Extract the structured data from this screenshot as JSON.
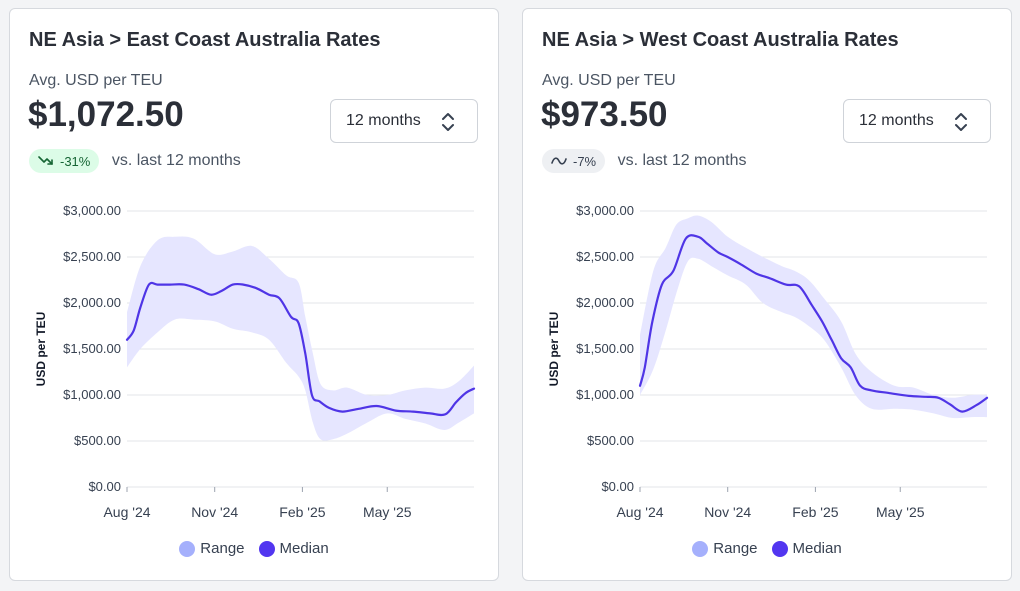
{
  "cards": [
    {
      "title": "NE Asia > East Coast Australia Rates",
      "metric_label": "Avg. USD per TEU",
      "metric_value": "$1,072.50",
      "change": {
        "text": "-31%",
        "trend": "down",
        "icon": "trend-down-icon"
      },
      "comparison": "vs. last 12 months",
      "range_select": {
        "value": "12 months",
        "icon": "chevron-up-down-icon"
      }
    },
    {
      "title": "NE Asia > West Coast Australia Rates",
      "metric_label": "Avg. USD per TEU",
      "metric_value": "$973.50",
      "change": {
        "text": "-7%",
        "trend": "flat",
        "icon": "trend-flat-icon"
      },
      "comparison": "vs. last 12 months",
      "range_select": {
        "value": "12 months",
        "icon": "chevron-up-down-icon"
      }
    }
  ],
  "colors": {
    "median_line": "#4f35e6",
    "range_fill": "#e6e6ff",
    "legend_range": "#a5b0fc",
    "legend_median": "#5236f0",
    "grid": "#e3e5e8",
    "badge_down_bg": "#dcfce7",
    "badge_flat_bg": "#eef0f3"
  },
  "chart_data": [
    {
      "type": "area",
      "ylabel": "USD per TEU",
      "ylim": [
        0,
        3000
      ],
      "y_ticks": [
        0,
        500,
        1000,
        1500,
        2000,
        2500,
        3000
      ],
      "y_tick_labels": [
        "$0.00",
        "$500.00",
        "$1,000.00",
        "$1,500.00",
        "$2,000.00",
        "$2,500.00",
        "$3,000.00"
      ],
      "xlim": [
        "2024-08-01",
        "2025-07-31"
      ],
      "x_ticks": [
        "2024-08-01",
        "2024-11-01",
        "2025-02-01",
        "2025-05-01"
      ],
      "x_tick_labels": [
        "Aug '24",
        "Nov '24",
        "Feb '25",
        "May '25"
      ],
      "legend": {
        "position": "bottom-center",
        "items": [
          "Range",
          "Median"
        ]
      },
      "grid": true,
      "series": [
        {
          "name": "Median",
          "x": [
            "2024-08-01",
            "2024-08-08",
            "2024-08-15",
            "2024-08-24",
            "2024-09-02",
            "2024-09-15",
            "2024-09-30",
            "2024-10-15",
            "2024-10-28",
            "2024-11-08",
            "2024-11-20",
            "2024-12-01",
            "2024-12-15",
            "2024-12-28",
            "2025-01-08",
            "2025-01-20",
            "2025-01-28",
            "2025-02-04",
            "2025-02-11",
            "2025-02-19",
            "2025-03-01",
            "2025-03-15",
            "2025-04-01",
            "2025-04-20",
            "2025-05-10",
            "2025-05-28",
            "2025-06-15",
            "2025-07-01",
            "2025-07-12",
            "2025-07-22",
            "2025-07-31"
          ],
          "values": [
            1600,
            1700,
            1950,
            2200,
            2200,
            2200,
            2200,
            2150,
            2090,
            2130,
            2200,
            2200,
            2160,
            2090,
            2050,
            1850,
            1780,
            1450,
            1000,
            930,
            860,
            820,
            850,
            880,
            830,
            820,
            800,
            790,
            920,
            1020,
            1070
          ]
        },
        {
          "name": "Range",
          "x": [
            "2024-08-01",
            "2024-08-15",
            "2024-09-02",
            "2024-09-20",
            "2024-10-10",
            "2024-11-01",
            "2024-11-20",
            "2024-12-10",
            "2024-12-28",
            "2025-01-15",
            "2025-01-28",
            "2025-02-04",
            "2025-02-12",
            "2025-02-20",
            "2025-03-05",
            "2025-03-20",
            "2025-04-10",
            "2025-05-01",
            "2025-05-20",
            "2025-06-10",
            "2025-06-30",
            "2025-07-15",
            "2025-07-31"
          ],
          "low": [
            1300,
            1500,
            1680,
            1820,
            1820,
            1800,
            1720,
            1680,
            1600,
            1350,
            1200,
            1050,
            700,
            520,
            520,
            580,
            700,
            800,
            740,
            690,
            620,
            700,
            800
          ],
          "high": [
            1900,
            2400,
            2680,
            2720,
            2700,
            2530,
            2560,
            2620,
            2480,
            2300,
            2220,
            1850,
            1450,
            1120,
            1050,
            1080,
            1000,
            1000,
            1050,
            1080,
            1070,
            1150,
            1320
          ]
        }
      ]
    },
    {
      "type": "area",
      "ylabel": "USD per TEU",
      "ylim": [
        0,
        3000
      ],
      "y_ticks": [
        0,
        500,
        1000,
        1500,
        2000,
        2500,
        3000
      ],
      "y_tick_labels": [
        "$0.00",
        "$500.00",
        "$1,000.00",
        "$1,500.00",
        "$2,000.00",
        "$2,500.00",
        "$3,000.00"
      ],
      "xlim": [
        "2024-08-01",
        "2025-07-31"
      ],
      "x_ticks": [
        "2024-08-01",
        "2024-11-01",
        "2025-02-01",
        "2025-05-01"
      ],
      "x_tick_labels": [
        "Aug '24",
        "Nov '24",
        "Feb '25",
        "May '25"
      ],
      "legend": {
        "position": "bottom-center",
        "items": [
          "Range",
          "Median"
        ]
      },
      "grid": true,
      "series": [
        {
          "name": "Median",
          "x": [
            "2024-08-01",
            "2024-08-06",
            "2024-08-14",
            "2024-08-24",
            "2024-09-05",
            "2024-09-18",
            "2024-10-01",
            "2024-10-10",
            "2024-10-22",
            "2024-11-01",
            "2024-11-15",
            "2024-12-01",
            "2024-12-15",
            "2025-01-01",
            "2025-01-15",
            "2025-01-28",
            "2025-02-08",
            "2025-02-18",
            "2025-02-28",
            "2025-03-10",
            "2025-03-20",
            "2025-04-01",
            "2025-04-20",
            "2025-05-10",
            "2025-05-28",
            "2025-06-10",
            "2025-06-22",
            "2025-07-05",
            "2025-07-20",
            "2025-07-31"
          ],
          "values": [
            1100,
            1300,
            1800,
            2200,
            2350,
            2700,
            2720,
            2650,
            2550,
            2500,
            2420,
            2320,
            2270,
            2200,
            2180,
            1980,
            1800,
            1600,
            1400,
            1300,
            1100,
            1050,
            1020,
            990,
            980,
            970,
            900,
            820,
            890,
            970
          ]
        },
        {
          "name": "Range",
          "x": [
            "2024-08-01",
            "2024-08-15",
            "2024-08-28",
            "2024-09-08",
            "2024-09-20",
            "2024-10-01",
            "2024-10-15",
            "2024-11-01",
            "2024-11-20",
            "2024-12-08",
            "2024-12-28",
            "2025-01-10",
            "2025-01-25",
            "2025-02-10",
            "2025-02-28",
            "2025-03-15",
            "2025-04-01",
            "2025-04-25",
            "2025-05-15",
            "2025-06-05",
            "2025-06-25",
            "2025-07-15",
            "2025-07-31"
          ],
          "low": [
            1000,
            1280,
            1700,
            2100,
            2450,
            2480,
            2400,
            2300,
            2200,
            2000,
            1900,
            1850,
            1750,
            1600,
            1300,
            1000,
            850,
            850,
            840,
            800,
            750,
            760,
            760
          ],
          "high": [
            1650,
            2350,
            2600,
            2850,
            2920,
            2950,
            2880,
            2720,
            2600,
            2500,
            2400,
            2350,
            2250,
            2050,
            1800,
            1450,
            1250,
            1100,
            1080,
            1000,
            970,
            1000,
            1000
          ]
        }
      ]
    }
  ]
}
